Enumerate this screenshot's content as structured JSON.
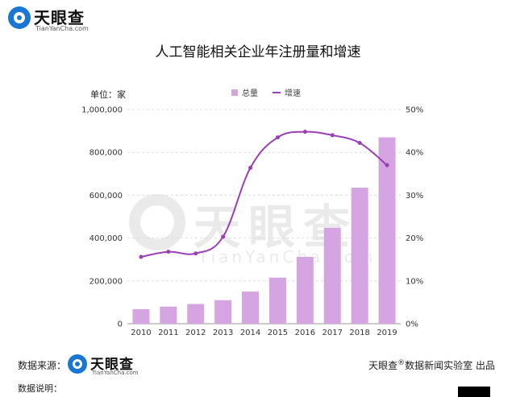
{
  "brand": {
    "name": "天眼查",
    "domain": "TianYanCha.com"
  },
  "title": "人工智能相关企业年注册量和增速",
  "unit_label": "单位：家",
  "legend": {
    "bar_label": "总量",
    "line_label": "增速"
  },
  "footer": {
    "source_label": "数据来源：",
    "credit_brand": "天眼查",
    "credit_mark": "®",
    "credit_text": "数据新闻实验室 出品",
    "note_label": "数据说明："
  },
  "colors": {
    "bar": "#d4a5e0",
    "line": "#9b3fb5",
    "brand_blue": "#1976d2"
  },
  "chart_data": {
    "type": "bar+line",
    "categories": [
      "2010",
      "2011",
      "2012",
      "2013",
      "2014",
      "2015",
      "2016",
      "2017",
      "2018",
      "2019"
    ],
    "series": [
      {
        "name": "总量",
        "type": "bar",
        "axis": "left",
        "values": [
          68000,
          80000,
          92000,
          110000,
          150000,
          215000,
          312000,
          448000,
          635000,
          870000
        ]
      },
      {
        "name": "增速",
        "type": "line",
        "axis": "right",
        "values": [
          15.6,
          16.8,
          16.4,
          20.3,
          36.4,
          43.5,
          44.8,
          44.0,
          42.2,
          37.0
        ]
      }
    ],
    "left_axis": {
      "min": 0,
      "max": 1000000,
      "ticks": [
        "0",
        "200,000",
        "400,000",
        "600,000",
        "800,000",
        "1,000,000"
      ],
      "tick_values": [
        0,
        200000,
        400000,
        600000,
        800000,
        1000000
      ]
    },
    "right_axis": {
      "min": 0,
      "max": 50,
      "ticks": [
        "0%",
        "10%",
        "20%",
        "30%",
        "40%",
        "50%"
      ],
      "tick_values": [
        0,
        10,
        20,
        30,
        40,
        50
      ]
    },
    "grid": true,
    "legend_position": "top-center"
  }
}
